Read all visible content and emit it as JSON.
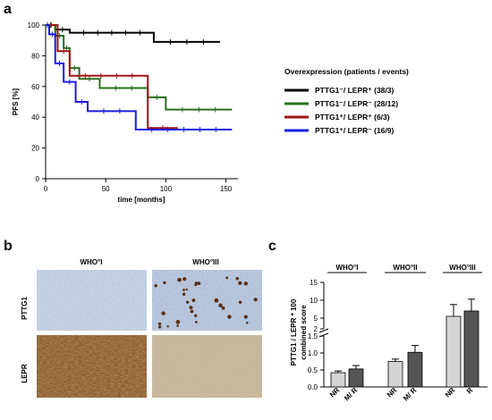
{
  "panels": {
    "a": {
      "label": "a",
      "chart_data": {
        "type": "line",
        "xlabel": "time [months]",
        "ylabel": "PFS [%]",
        "xlim": [
          0,
          160
        ],
        "ylim": [
          0,
          100
        ],
        "xticks": [
          "0",
          "50",
          "100",
          "150"
        ],
        "yticks": [
          "0",
          "20",
          "40",
          "60",
          "80",
          "100"
        ],
        "legend_title": "Overexpression (patients / events)",
        "legend_position": "right",
        "series": [
          {
            "name": "PTTG1⁻/ LEPR⁺ (38/3)",
            "color": "#000000",
            "x": [
              0,
              8,
              20,
              90,
              145
            ],
            "y": [
              100,
              97,
              95,
              89,
              89
            ]
          },
          {
            "name": "PTTG1⁻/ LEPR⁻ (28/12)",
            "color": "#2a6e1c",
            "x": [
              0,
              8,
              15,
              20,
              28,
              45,
              85,
              100,
              155
            ],
            "y": [
              100,
              93,
              85,
              72,
              65,
              59,
              53,
              45,
              45
            ]
          },
          {
            "name": "PTTG1⁺/ LEPR⁺ (6/3)",
            "color": "#a01515",
            "x": [
              0,
              10,
              20,
              85,
              110
            ],
            "y": [
              100,
              83,
              67,
              33,
              33
            ]
          },
          {
            "name": "PTTG1⁺/ LEPR⁻ (16/9)",
            "color": "#1c1ce0",
            "x": [
              0,
              3,
              8,
              15,
              25,
              35,
              75,
              155
            ],
            "y": [
              100,
              94,
              75,
              63,
              50,
              44,
              32,
              32
            ]
          }
        ]
      }
    },
    "b": {
      "label": "b",
      "col_headers": [
        "WHO°I",
        "WHO°III"
      ],
      "row_headers": [
        "PTTG1",
        "LEPR"
      ]
    },
    "c": {
      "label": "c",
      "chart_data": {
        "type": "bar",
        "ylabel": [
          "PTTG1 / LEPR * 100",
          "combined score"
        ],
        "group_labels": [
          "WHO°I",
          "WHO°II",
          "WHO°III"
        ],
        "categories": [
          "NR",
          "M/ R",
          "NR",
          "M/ R",
          "NR",
          "R"
        ],
        "values": [
          0.42,
          0.53,
          0.75,
          1.02,
          5.5,
          7.0
        ],
        "errors": [
          0.05,
          0.1,
          0.07,
          0.2,
          3.3,
          3.3
        ],
        "bar_colors": [
          "#d4d4d4",
          "#555555",
          "#d4d4d4",
          "#555555",
          "#d4d4d4",
          "#555555"
        ],
        "y_lower_ticks": [
          "0.0",
          "0.5",
          "1.0",
          "1.5"
        ],
        "y_upper_ticks": [
          "2",
          "5",
          "10",
          "15"
        ],
        "y_axis_break": [
          1.5,
          2
        ]
      }
    }
  }
}
